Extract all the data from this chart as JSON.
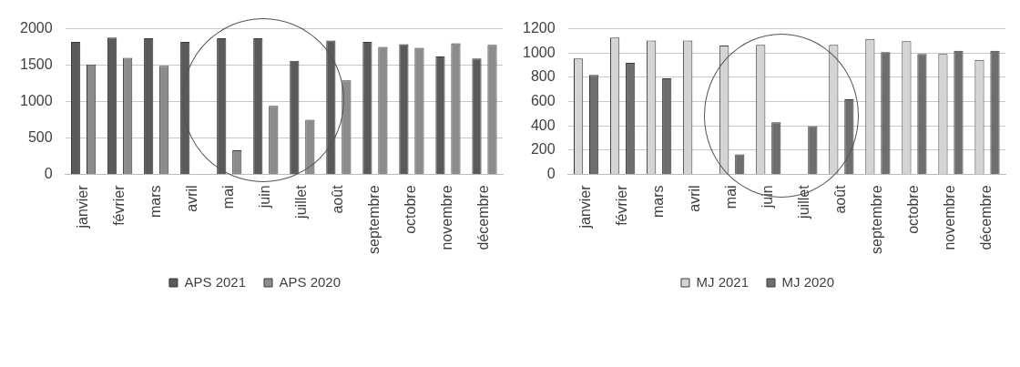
{
  "chart_data": [
    {
      "type": "bar",
      "categories": [
        "janvier",
        "février",
        "mars",
        "avril",
        "mai",
        "juin",
        "juillet",
        "août",
        "septembre",
        "octobre",
        "novembre",
        "décembre"
      ],
      "series": [
        {
          "name": "APS 2021",
          "color": "#5a5a5a",
          "values": [
            1820,
            1880,
            1870,
            1820,
            1870,
            1870,
            1560,
            1840,
            1820,
            1790,
            1620,
            1590
          ]
        },
        {
          "name": "APS 2020",
          "color": "#8c8c8c",
          "values": [
            1510,
            1600,
            1490,
            0,
            330,
            940,
            750,
            1290,
            1750,
            1740,
            1800,
            1780
          ]
        }
      ],
      "ylim": [
        0,
        2000
      ],
      "yticks": [
        0,
        500,
        1000,
        1500,
        2000
      ],
      "grid": "y",
      "legend": "bottom"
    },
    {
      "type": "bar",
      "categories": [
        "janvier",
        "février",
        "mars",
        "avril",
        "mai",
        "juin",
        "juillet",
        "août",
        "septembre",
        "octobre",
        "novembre",
        "décembre"
      ],
      "series": [
        {
          "name": "MJ 2021",
          "color": "#d4d4d4",
          "values": [
            954,
            1127,
            1103,
            1103,
            1062,
            1068,
            0,
            1068,
            1116,
            1097,
            992,
            943
          ]
        },
        {
          "name": "MJ 2020",
          "color": "#6e6e6e",
          "values": [
            819,
            919,
            792,
            0,
            165,
            430,
            397,
            619,
            1008,
            992,
            1019,
            1019
          ]
        }
      ],
      "ylim": [
        0,
        1200
      ],
      "yticks": [
        0,
        200,
        400,
        600,
        800,
        1000,
        1200
      ],
      "grid": "y",
      "legend": "bottom"
    }
  ]
}
